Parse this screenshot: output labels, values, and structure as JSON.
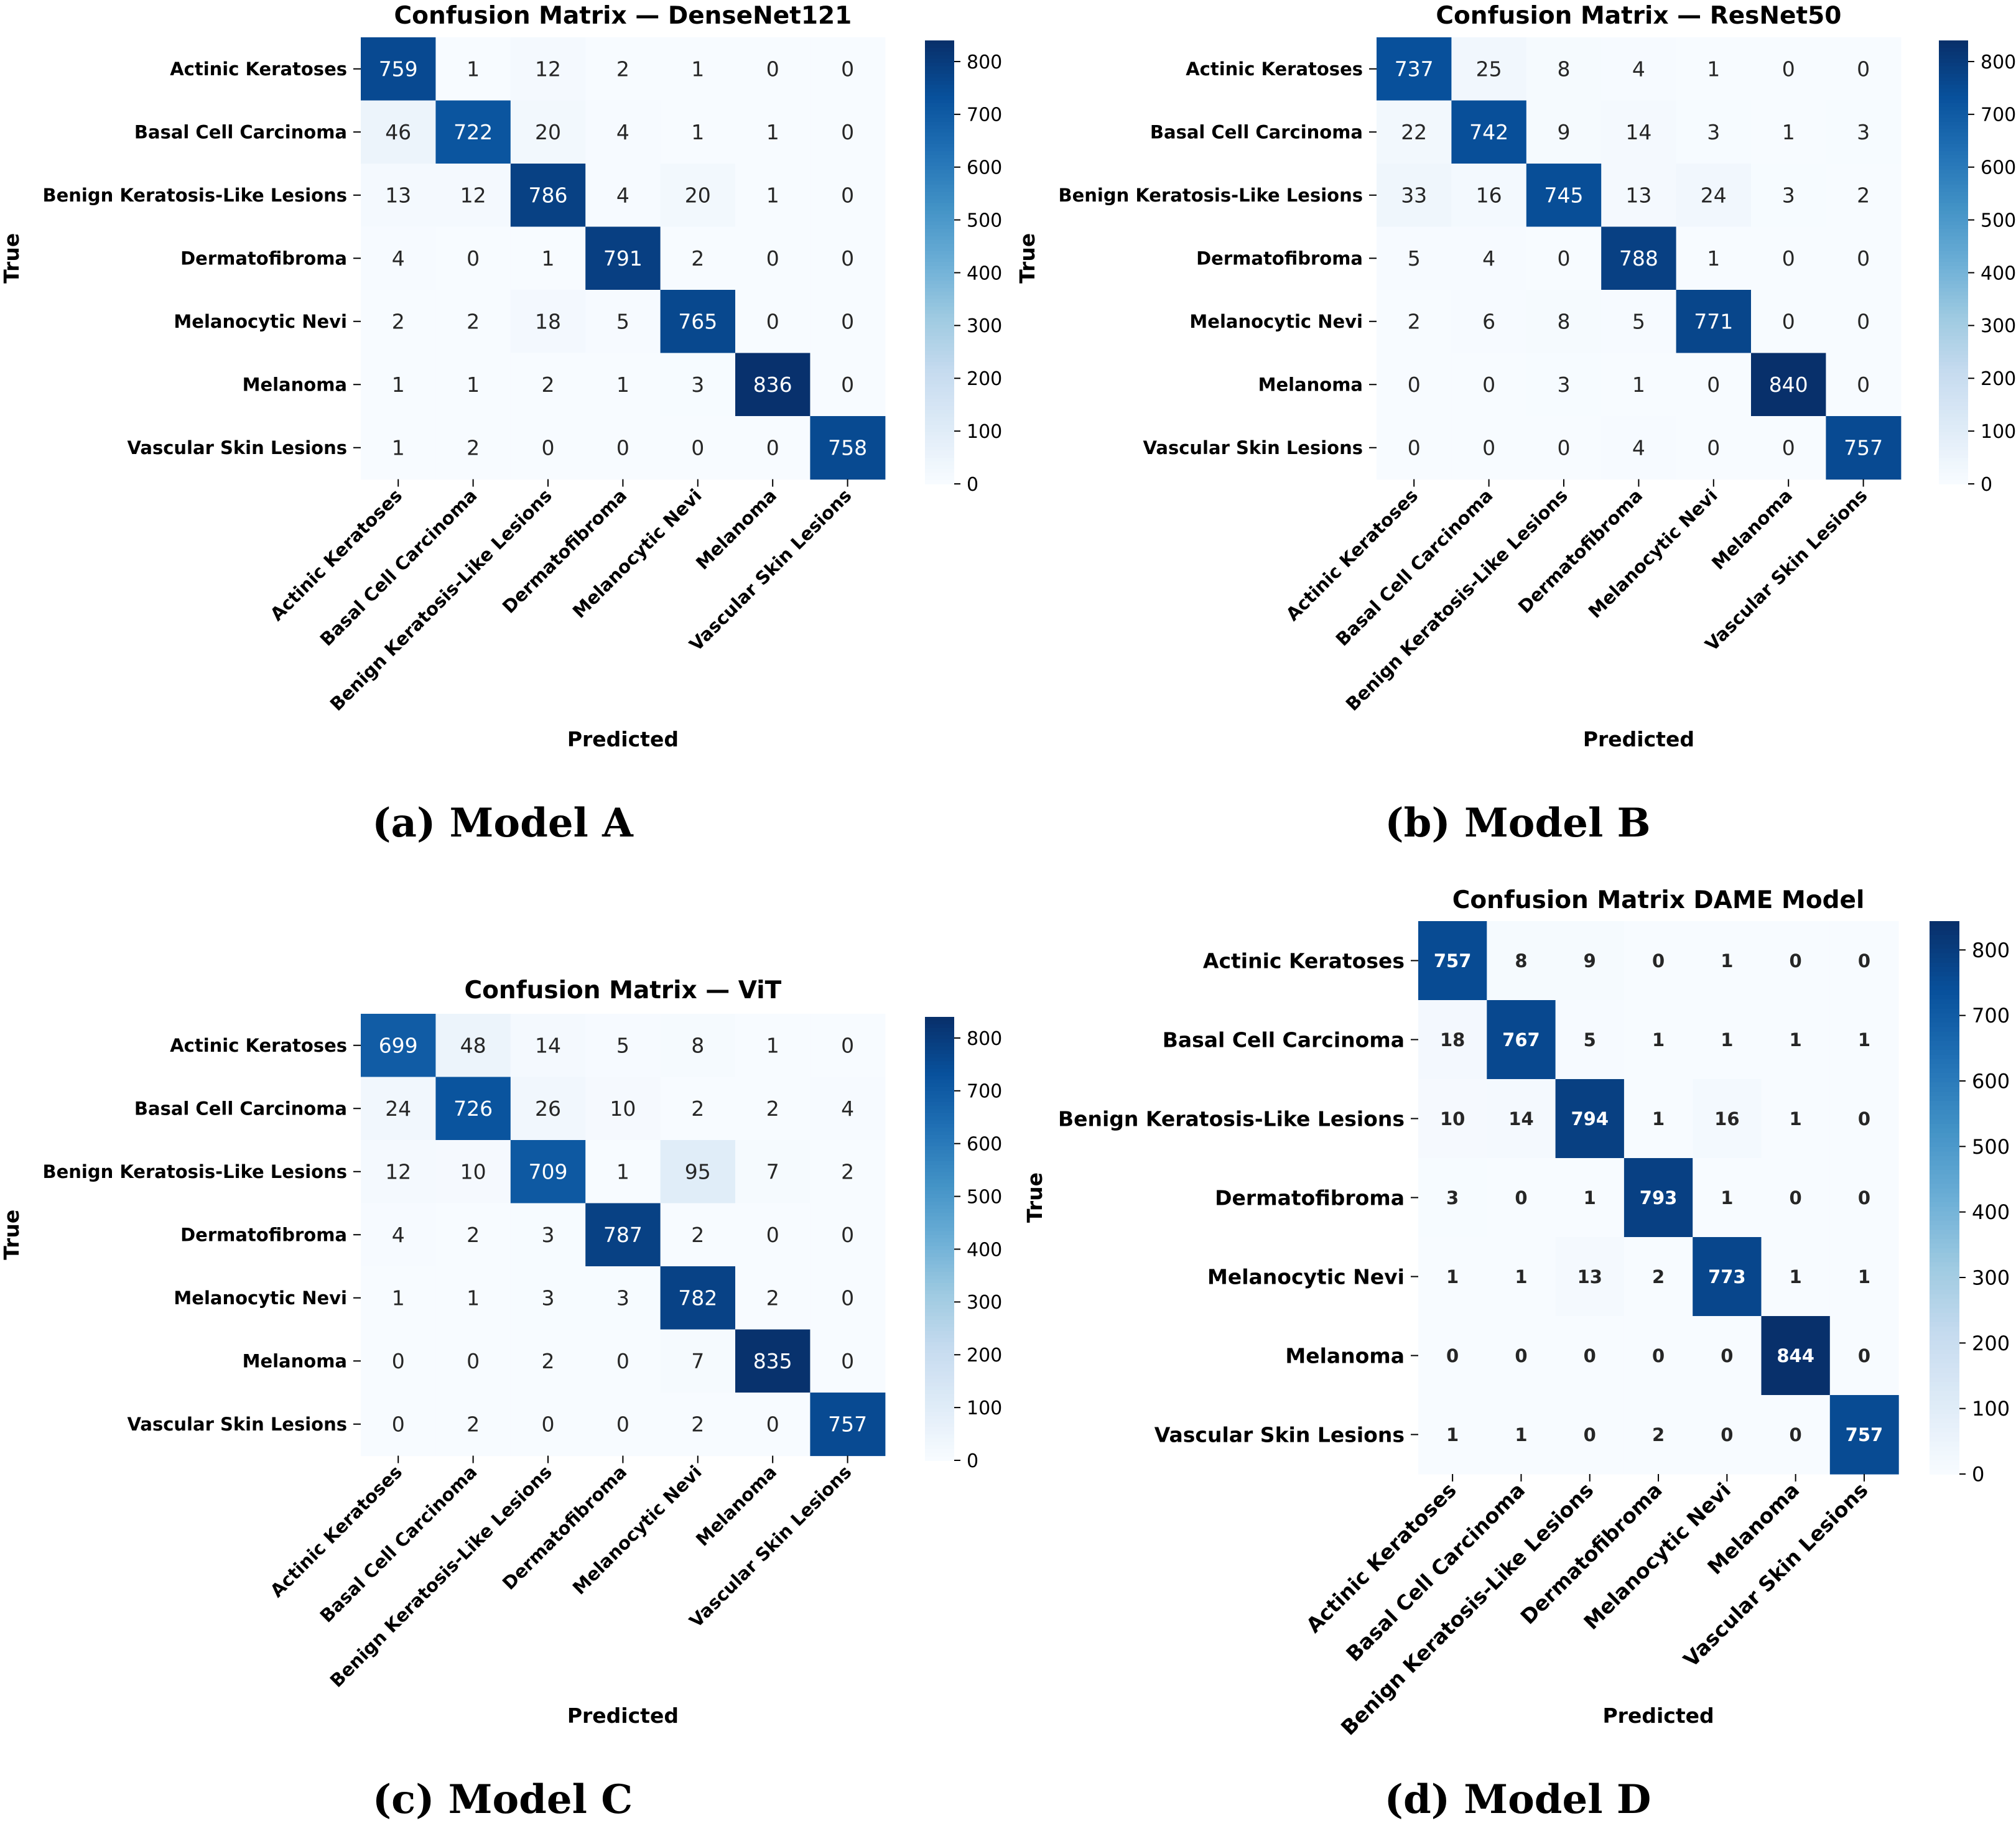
{
  "chart_data": [
    {
      "type": "heatmap",
      "title": "Confusion Matrix — DenseNet121",
      "caption": "(a) Model A",
      "xlabel": "Predicted",
      "ylabel": "True",
      "categories": [
        "Actinic Keratoses",
        "Basal Cell Carcinoma",
        "Benign Keratosis-Like Lesions",
        "Dermatofibroma",
        "Melanocytic Nevi",
        "Melanoma",
        "Vascular Skin Lesions"
      ],
      "matrix": [
        [
          759,
          1,
          12,
          2,
          1,
          0,
          0
        ],
        [
          46,
          722,
          20,
          4,
          1,
          1,
          0
        ],
        [
          13,
          12,
          786,
          4,
          20,
          1,
          0
        ],
        [
          4,
          0,
          1,
          791,
          2,
          0,
          0
        ],
        [
          2,
          2,
          18,
          5,
          765,
          0,
          0
        ],
        [
          1,
          1,
          2,
          1,
          3,
          836,
          0
        ],
        [
          1,
          2,
          0,
          0,
          0,
          0,
          758
        ]
      ],
      "colorbar_ticks": [
        0,
        100,
        200,
        300,
        400,
        500,
        600,
        700,
        800
      ],
      "color_range": [
        0,
        840
      ],
      "cmap": [
        "#f7fbff",
        "#deebf7",
        "#c6dbef",
        "#9ecae1",
        "#6baed6",
        "#4292c6",
        "#2171b5",
        "#08519c",
        "#08306b"
      ]
    },
    {
      "type": "heatmap",
      "title": "Confusion Matrix — ResNet50",
      "caption": "(b) Model B",
      "xlabel": "Predicted",
      "ylabel": "True",
      "categories": [
        "Actinic Keratoses",
        "Basal Cell Carcinoma",
        "Benign Keratosis-Like Lesions",
        "Dermatofibroma",
        "Melanocytic Nevi",
        "Melanoma",
        "Vascular Skin Lesions"
      ],
      "matrix": [
        [
          737,
          25,
          8,
          4,
          1,
          0,
          0
        ],
        [
          22,
          742,
          9,
          14,
          3,
          1,
          3
        ],
        [
          33,
          16,
          745,
          13,
          24,
          3,
          2
        ],
        [
          5,
          4,
          0,
          788,
          1,
          0,
          0
        ],
        [
          2,
          6,
          8,
          5,
          771,
          0,
          0
        ],
        [
          0,
          0,
          3,
          1,
          0,
          840,
          0
        ],
        [
          0,
          0,
          0,
          4,
          0,
          0,
          757
        ]
      ],
      "colorbar_ticks": [
        0,
        100,
        200,
        300,
        400,
        500,
        600,
        700,
        800
      ],
      "color_range": [
        0,
        840
      ],
      "cmap": [
        "#f7fbff",
        "#deebf7",
        "#c6dbef",
        "#9ecae1",
        "#6baed6",
        "#4292c6",
        "#2171b5",
        "#08519c",
        "#08306b"
      ]
    },
    {
      "type": "heatmap",
      "title": "Confusion Matrix — ViT",
      "caption": "(c) Model C",
      "xlabel": "Predicted",
      "ylabel": "True",
      "categories": [
        "Actinic Keratoses",
        "Basal Cell Carcinoma",
        "Benign Keratosis-Like Lesions",
        "Dermatofibroma",
        "Melanocytic Nevi",
        "Melanoma",
        "Vascular Skin Lesions"
      ],
      "matrix": [
        [
          699,
          48,
          14,
          5,
          8,
          1,
          0
        ],
        [
          24,
          726,
          26,
          10,
          2,
          2,
          4
        ],
        [
          12,
          10,
          709,
          1,
          95,
          7,
          2
        ],
        [
          4,
          2,
          3,
          787,
          2,
          0,
          0
        ],
        [
          1,
          1,
          3,
          3,
          782,
          2,
          0
        ],
        [
          0,
          0,
          2,
          0,
          7,
          835,
          0
        ],
        [
          0,
          2,
          0,
          0,
          2,
          0,
          757
        ]
      ],
      "colorbar_ticks": [
        0,
        100,
        200,
        300,
        400,
        500,
        600,
        700,
        800
      ],
      "color_range": [
        0,
        840
      ],
      "cmap": [
        "#f7fbff",
        "#deebf7",
        "#c6dbef",
        "#9ecae1",
        "#6baed6",
        "#4292c6",
        "#2171b5",
        "#08519c",
        "#08306b"
      ]
    },
    {
      "type": "heatmap",
      "title": "Confusion Matrix DAME Model",
      "caption": "(d) Model D",
      "xlabel": "Predicted",
      "ylabel": "True",
      "categories": [
        "Actinic Keratoses",
        "Basal Cell Carcinoma",
        "Benign Keratosis-Like Lesions",
        "Dermatofibroma",
        "Melanocytic Nevi",
        "Melanoma",
        "Vascular Skin Lesions"
      ],
      "matrix": [
        [
          757,
          8,
          9,
          0,
          1,
          0,
          0
        ],
        [
          18,
          767,
          5,
          1,
          1,
          1,
          1
        ],
        [
          10,
          14,
          794,
          1,
          16,
          1,
          0
        ],
        [
          3,
          0,
          1,
          793,
          1,
          0,
          0
        ],
        [
          1,
          1,
          13,
          2,
          773,
          1,
          1
        ],
        [
          0,
          0,
          0,
          0,
          0,
          844,
          0
        ],
        [
          1,
          1,
          0,
          2,
          0,
          0,
          757
        ]
      ],
      "colorbar_ticks": [
        0,
        100,
        200,
        300,
        400,
        500,
        600,
        700,
        800
      ],
      "color_range": [
        0,
        844
      ],
      "cmap": [
        "#f7fbff",
        "#deebf7",
        "#c6dbef",
        "#9ecae1",
        "#6baed6",
        "#4292c6",
        "#2171b5",
        "#08519c",
        "#08306b"
      ]
    }
  ]
}
